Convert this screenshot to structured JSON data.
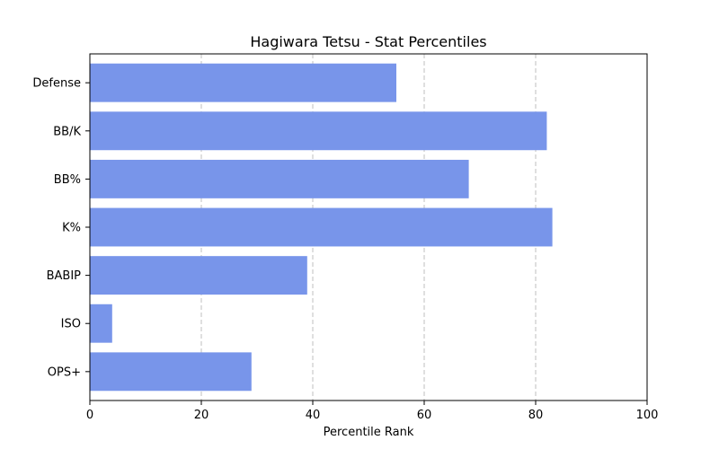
{
  "chart_data": {
    "type": "bar",
    "orientation": "horizontal",
    "title": "Hagiwara Tetsu - Stat Percentiles",
    "xlabel": "Percentile Rank",
    "ylabel": "",
    "xlim": [
      0,
      100
    ],
    "xticks": [
      0,
      20,
      40,
      60,
      80,
      100
    ],
    "x_grid": true,
    "grid_style": "dashed",
    "bar_color": "#7895ea",
    "categories": [
      "Defense",
      "BB/K",
      "BB%",
      "K%",
      "BABIP",
      "ISO",
      "OPS+"
    ],
    "values": [
      55,
      82,
      68,
      83,
      39,
      4,
      29
    ]
  }
}
